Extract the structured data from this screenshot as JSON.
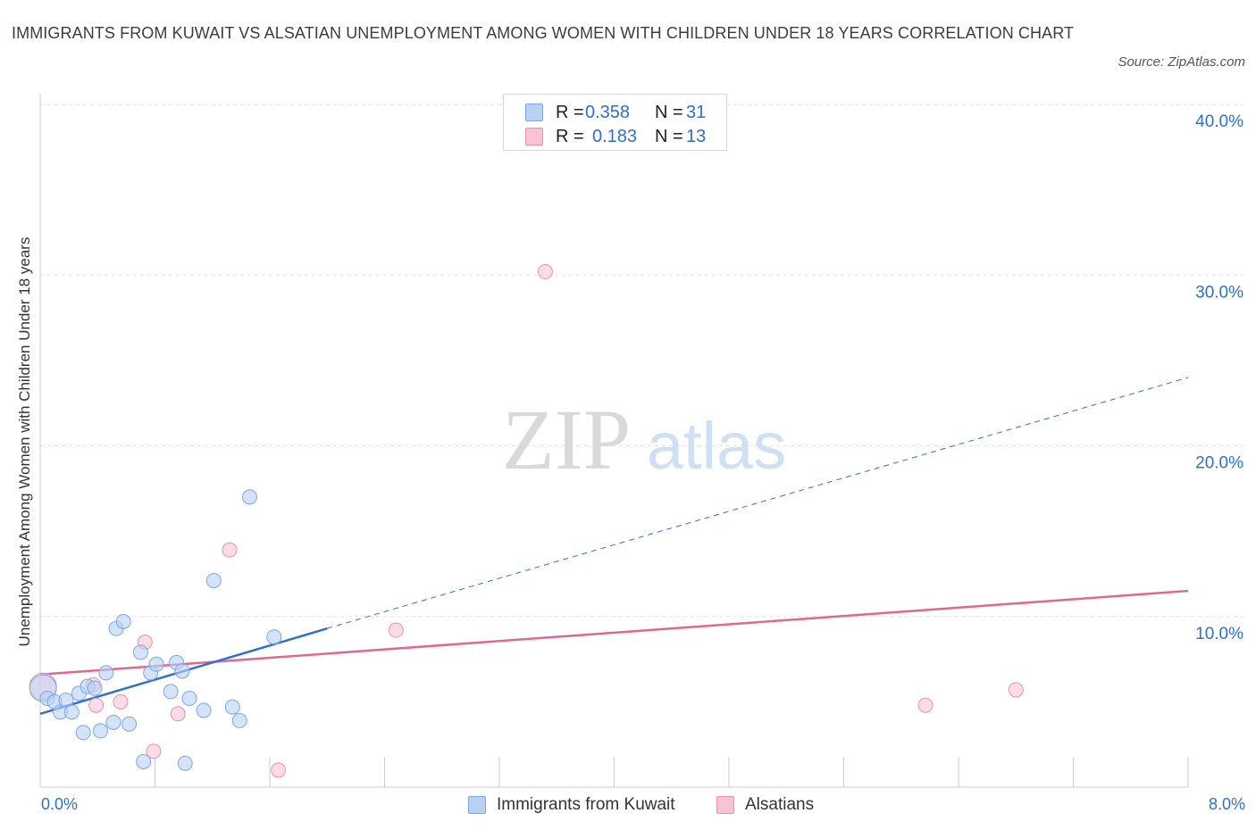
{
  "header": {
    "title": "IMMIGRANTS FROM KUWAIT VS ALSATIAN UNEMPLOYMENT AMONG WOMEN WITH CHILDREN UNDER 18 YEARS CORRELATION CHART",
    "source": "Source: ZipAtlas.com"
  },
  "watermark": {
    "zip": "ZIP",
    "atlas": "atlas"
  },
  "legend": {
    "r_label": "R =",
    "n_label": "N =",
    "rows": [
      {
        "r": "0.358",
        "n": "31"
      },
      {
        "r": "0.183",
        "n": "13"
      }
    ]
  },
  "colors": {
    "blue_fill": "#b9d1f5",
    "blue_stroke": "#7aa7e2",
    "blue_line": "#2f6fcf",
    "pink_fill": "#f8c4d5",
    "pink_stroke": "#e892b0",
    "pink_line": "#e06890",
    "grid": "#e2e2e2",
    "tick_text": "#2f6fcf"
  },
  "chart_data": {
    "type": "scatter",
    "title": "IMMIGRANTS FROM KUWAIT VS ALSATIAN UNEMPLOYMENT AMONG WOMEN WITH CHILDREN UNDER 18 YEARS CORRELATION CHART",
    "xlabel": "",
    "ylabel": "Unemployment Among Women with Children Under 18 years",
    "xlim": [
      0,
      8
    ],
    "ylim": [
      0,
      40
    ],
    "x_tick_labels": [
      "0.0%",
      "8.0%"
    ],
    "y_ticks": [
      10,
      20,
      30,
      40
    ],
    "y_tick_labels": [
      "10.0%",
      "20.0%",
      "30.0%",
      "40.0%"
    ],
    "legend_position": "top-center",
    "series": [
      {
        "name": "Immigrants from Kuwait",
        "r": 0.358,
        "n": 31,
        "points": [
          [
            0.02,
            5.8
          ],
          [
            0.05,
            5.2
          ],
          [
            0.1,
            5.0
          ],
          [
            0.14,
            4.4
          ],
          [
            0.18,
            5.1
          ],
          [
            0.22,
            4.4
          ],
          [
            0.27,
            5.5
          ],
          [
            0.3,
            3.2
          ],
          [
            0.33,
            5.9
          ],
          [
            0.38,
            5.8
          ],
          [
            0.42,
            3.3
          ],
          [
            0.46,
            6.7
          ],
          [
            0.51,
            3.8
          ],
          [
            0.53,
            9.3
          ],
          [
            0.58,
            9.7
          ],
          [
            0.62,
            3.7
          ],
          [
            0.7,
            7.9
          ],
          [
            0.72,
            1.5
          ],
          [
            0.77,
            6.7
          ],
          [
            0.81,
            7.2
          ],
          [
            0.91,
            5.6
          ],
          [
            0.95,
            7.3
          ],
          [
            0.99,
            6.8
          ],
          [
            1.01,
            1.4
          ],
          [
            1.04,
            5.2
          ],
          [
            1.14,
            4.5
          ],
          [
            1.21,
            12.1
          ],
          [
            1.34,
            4.7
          ],
          [
            1.39,
            3.9
          ],
          [
            1.46,
            17.0
          ],
          [
            1.63,
            8.8
          ]
        ],
        "trend": {
          "x0": 0,
          "y0": 4.3,
          "x1": 2.0,
          "y1": 9.3
        },
        "trend_extension": {
          "x0": 2.0,
          "y0": 9.3,
          "x1": 8.0,
          "y1": 24.0
        }
      },
      {
        "name": "Alsatians",
        "r": 0.183,
        "n": 13,
        "points": [
          [
            0.02,
            5.9
          ],
          [
            0.37,
            6.0
          ],
          [
            0.39,
            4.8
          ],
          [
            0.56,
            5.0
          ],
          [
            0.73,
            8.5
          ],
          [
            0.79,
            2.1
          ],
          [
            0.96,
            4.3
          ],
          [
            1.32,
            13.9
          ],
          [
            1.66,
            1.0
          ],
          [
            2.48,
            9.2
          ],
          [
            3.52,
            30.2
          ],
          [
            6.17,
            4.8
          ],
          [
            6.8,
            5.7
          ]
        ],
        "trend": {
          "x0": 0,
          "y0": 6.6,
          "x1": 8.0,
          "y1": 11.5
        }
      }
    ]
  }
}
